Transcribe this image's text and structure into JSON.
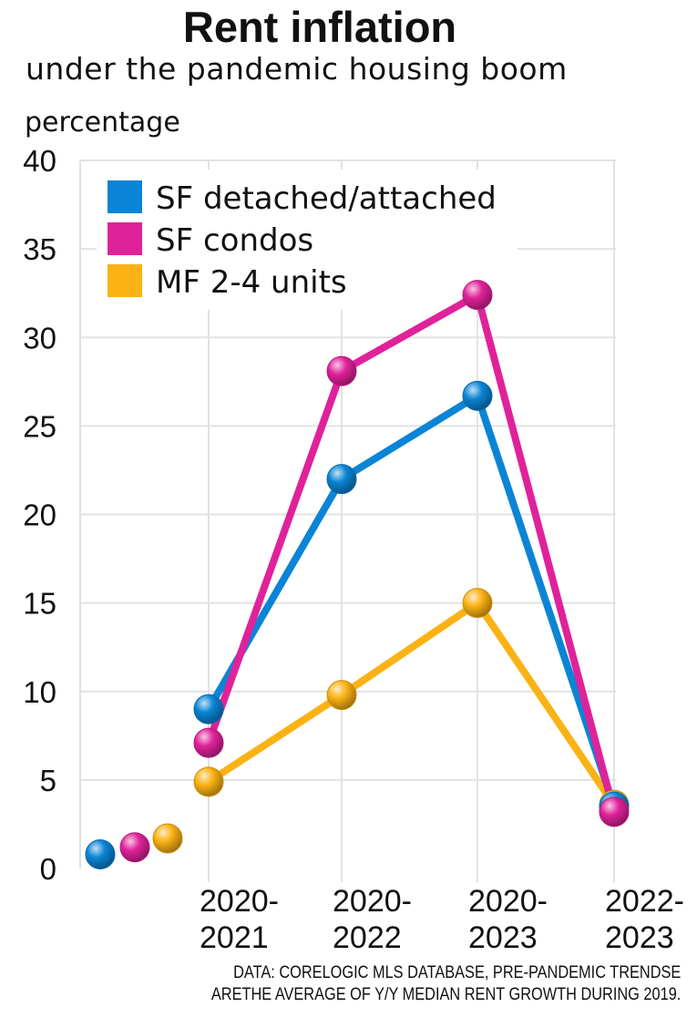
{
  "chart_data": {
    "type": "line",
    "title": "Rent inflation",
    "subtitle": "under the pandemic housing boom",
    "ylabel": "percentage",
    "ylim": [
      0,
      40
    ],
    "yticks": [
      0,
      5,
      10,
      15,
      20,
      25,
      30,
      35,
      40
    ],
    "categories": [
      "2020-2021",
      "2020-2022",
      "2020-2023",
      "2022-2023"
    ],
    "category_lines": [
      [
        "2020-",
        "2021"
      ],
      [
        "2020-",
        "2022"
      ],
      [
        "2020-",
        "2023"
      ],
      [
        "2022-",
        "2023"
      ]
    ],
    "grid": true,
    "legend_position": "top-left",
    "series": [
      {
        "name": "SF detached/attached",
        "color": "#0a84d6",
        "pre_pandemic": 0.8,
        "values": [
          9.0,
          22.0,
          26.7,
          3.5
        ]
      },
      {
        "name": "SF condos",
        "color": "#e0229a",
        "pre_pandemic": 1.2,
        "values": [
          7.1,
          28.1,
          32.4,
          3.2
        ]
      },
      {
        "name": "MF 2-4 units",
        "color": "#fbb214",
        "pre_pandemic": 1.7,
        "values": [
          4.9,
          9.8,
          15.0,
          3.6
        ]
      }
    ],
    "source_lines": [
      "DATA: CORELOGIC MLS DATABASE, PRE-PANDEMIC TRENDSE",
      "ARETHE AVERAGE OF Y/Y MEDIAN RENT GROWTH DURING 2019."
    ]
  }
}
